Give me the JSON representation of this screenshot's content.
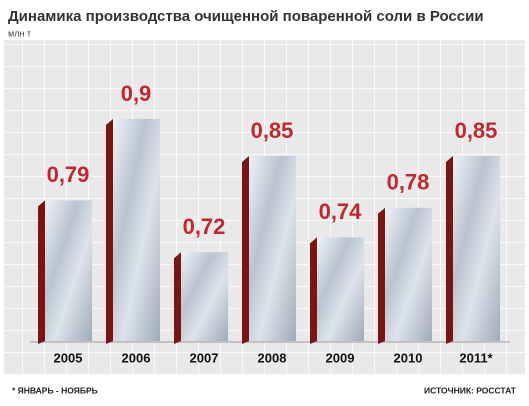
{
  "chart_data": {
    "type": "bar",
    "title": "Динамика производства очищенной поваренной соли в России",
    "subtitle": "млн т",
    "categories": [
      "2005",
      "2006",
      "2007",
      "2008",
      "2009",
      "2010",
      "2011*"
    ],
    "values": [
      0.79,
      0.9,
      0.72,
      0.85,
      0.74,
      0.78,
      0.85
    ],
    "value_labels": [
      "0,79",
      "0,9",
      "0,72",
      "0,85",
      "0,74",
      "0,78",
      "0,85"
    ],
    "ylim": [
      0.6,
      1.0
    ],
    "color": "#c9d2dc",
    "label_color": "#c0282d",
    "footnote": "* ЯНВАРЬ - НОЯБРЬ",
    "source": "ИСТОЧНИК: РОССТАТ"
  }
}
